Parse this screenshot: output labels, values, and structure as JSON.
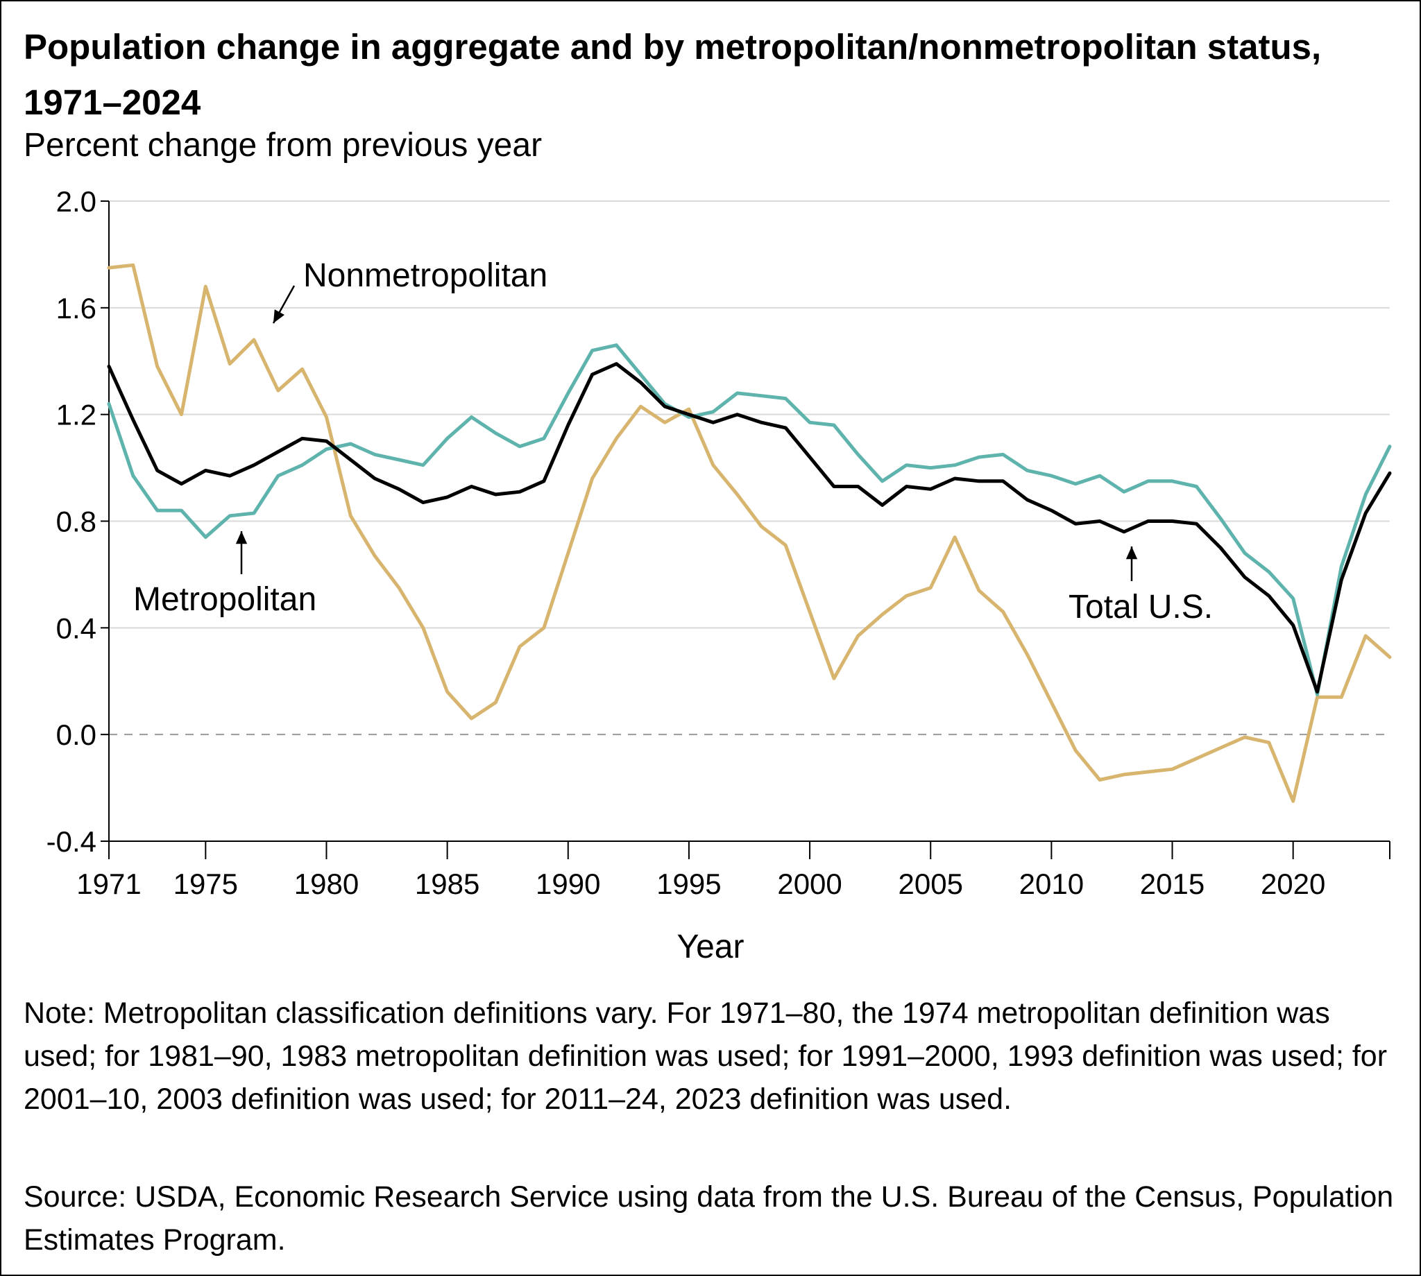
{
  "chart_data": {
    "type": "line",
    "title": "Population change in aggregate and by metropolitan/nonmetropolitan status, 1971–2024",
    "ylabel": "Percent change from previous year",
    "xlabel": "Year",
    "ylim": [
      -0.4,
      2.0
    ],
    "xlim": [
      1971,
      2024
    ],
    "yticks": [
      2.0,
      1.6,
      1.2,
      0.8,
      0.4,
      0.0,
      -0.4
    ],
    "ytick_labels": [
      "2.0",
      "1.6",
      "1.2",
      "0.8",
      "0.4",
      "0.0",
      "-0.4"
    ],
    "xticks": [
      1971,
      1975,
      1980,
      1985,
      1990,
      1995,
      2000,
      2005,
      2010,
      2015,
      2020
    ],
    "xtick_labels": [
      "1971",
      "1975",
      "1980",
      "1985",
      "1990",
      "1995",
      "2000",
      "2005",
      "2010",
      "2015",
      "2020"
    ],
    "grid": "horizontal",
    "zero_line": "dashed",
    "x": [
      1971,
      1972,
      1973,
      1974,
      1975,
      1976,
      1977,
      1978,
      1979,
      1980,
      1981,
      1982,
      1983,
      1984,
      1985,
      1986,
      1987,
      1988,
      1989,
      1990,
      1991,
      1992,
      1993,
      1994,
      1995,
      1996,
      1997,
      1998,
      1999,
      2000,
      2001,
      2002,
      2003,
      2004,
      2005,
      2006,
      2007,
      2008,
      2009,
      2010,
      2011,
      2012,
      2013,
      2014,
      2015,
      2016,
      2017,
      2018,
      2019,
      2020,
      2021,
      2022,
      2023,
      2024
    ],
    "series": [
      {
        "name": "Nonmetropolitan",
        "color": "#d8b56f",
        "values": [
          1.75,
          1.76,
          1.38,
          1.2,
          1.68,
          1.39,
          1.48,
          1.29,
          1.37,
          1.19,
          0.82,
          0.67,
          0.55,
          0.4,
          0.16,
          0.06,
          0.12,
          0.33,
          0.4,
          0.68,
          0.96,
          1.11,
          1.23,
          1.17,
          1.22,
          1.01,
          0.9,
          0.78,
          0.71,
          0.46,
          0.21,
          0.37,
          0.45,
          0.52,
          0.55,
          0.74,
          0.54,
          0.46,
          0.3,
          0.12,
          -0.06,
          -0.17,
          -0.15,
          -0.14,
          -0.13,
          -0.09,
          -0.05,
          -0.01,
          -0.03,
          -0.25,
          0.14,
          0.14,
          0.37,
          0.29
        ]
      },
      {
        "name": "Metropolitan",
        "color": "#5fb3ad",
        "values": [
          1.24,
          0.97,
          0.84,
          0.84,
          0.74,
          0.82,
          0.83,
          0.97,
          1.01,
          1.07,
          1.09,
          1.05,
          1.03,
          1.01,
          1.11,
          1.19,
          1.13,
          1.08,
          1.11,
          1.28,
          1.44,
          1.46,
          1.35,
          1.24,
          1.19,
          1.21,
          1.28,
          1.27,
          1.26,
          1.17,
          1.16,
          1.05,
          0.95,
          1.01,
          1.0,
          1.01,
          1.04,
          1.05,
          0.99,
          0.97,
          0.94,
          0.97,
          0.91,
          0.95,
          0.95,
          0.93,
          0.81,
          0.68,
          0.61,
          0.51,
          0.15,
          0.63,
          0.9,
          1.08
        ]
      },
      {
        "name": "Total U.S.",
        "color": "#000000",
        "values": [
          1.38,
          1.18,
          0.99,
          0.94,
          0.99,
          0.97,
          1.01,
          1.06,
          1.11,
          1.1,
          1.03,
          0.96,
          0.92,
          0.87,
          0.89,
          0.93,
          0.9,
          0.91,
          0.95,
          1.16,
          1.35,
          1.39,
          1.32,
          1.23,
          1.2,
          1.17,
          1.2,
          1.17,
          1.15,
          1.04,
          0.93,
          0.93,
          0.86,
          0.93,
          0.92,
          0.96,
          0.95,
          0.95,
          0.88,
          0.84,
          0.79,
          0.8,
          0.76,
          0.8,
          0.8,
          0.79,
          0.7,
          0.59,
          0.52,
          0.41,
          0.16,
          0.58,
          0.83,
          0.98
        ]
      }
    ],
    "annotations": [
      {
        "text": "Nonmetropolitan",
        "series": "Nonmetropolitan"
      },
      {
        "text": "Metropolitan",
        "series": "Metropolitan"
      },
      {
        "text": "Total U.S.",
        "series": "Total U.S."
      }
    ]
  },
  "note": "Note: Metropolitan classification definitions vary. For 1971–80, the 1974 metropolitan definition was used; for 1981–90, 1983 metropolitan definition was used; for 1991–2000, 1993 definition was used; for 2001–10, 2003 definition was used; for 2011–24, 2023 definition was used.",
  "source": "Source: USDA, Economic Research Service using data from the U.S. Bureau of the Census, Population Estimates Program."
}
